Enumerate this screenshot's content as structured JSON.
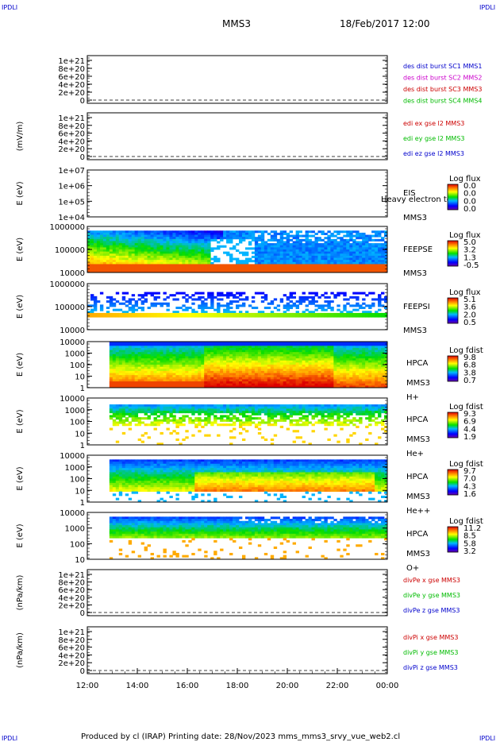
{
  "corner_logo": "IPDLI",
  "title": "MMS3",
  "date": "18/Feb/2017 12:00",
  "footer": "Produced by cl (IRAP)   Printing date: 28/Nov/2023   mms_mms3_srvy_vue_web2.cl",
  "time_ticks": [
    "12:00",
    "14:00",
    "16:00",
    "18:00",
    "20:00",
    "22:00",
    "00:00"
  ],
  "chart_data": [
    {
      "type": "line",
      "ylabel": "",
      "y_ticks": [
        "1e+21",
        "8e+20",
        "6e+20",
        "4e+20",
        "2e+20",
        "0"
      ],
      "legend": [
        {
          "text": "des dist burst SC1 MMS1",
          "color": "#0000cc"
        },
        {
          "text": "des dist burst SC2 MMS2",
          "color": "#cc00cc"
        },
        {
          "text": "des dist burst SC3 MMS3",
          "color": "#cc0000"
        },
        {
          "text": "des dist burst SC4 MMS4",
          "color": "#00bb00"
        }
      ],
      "zero_line": true
    },
    {
      "type": "line",
      "ylabel": "(mV/m)",
      "y_ticks": [
        "1e+21",
        "8e+20",
        "6e+20",
        "4e+20",
        "2e+20",
        "0"
      ],
      "legend": [
        {
          "text": "edi ex gse l2 MMS3",
          "color": "#cc0000"
        },
        {
          "text": "edi ey gse l2 MMS3",
          "color": "#00bb00"
        },
        {
          "text": "edi ez gse l2 MMS3",
          "color": "#0000cc"
        }
      ],
      "zero_line": true
    },
    {
      "type": "heatmap",
      "ylabel": "E (eV)",
      "y_ticks": [
        "1e+07",
        "1e+06",
        "1e+05",
        "1e+04"
      ],
      "instrument": [
        "EIS",
        "MMS3"
      ],
      "overlay_text": "Heavy electron to",
      "colorbar_title": "Log flux",
      "colorbar_ticks": [
        "0.0",
        "0.0",
        "0.0",
        "0.0"
      ],
      "fill": "none"
    },
    {
      "type": "heatmap",
      "ylabel": "E (eV)",
      "y_ticks": [
        "1000000",
        "100000",
        "10000"
      ],
      "instrument": [
        "FEEPSE",
        "MMS3"
      ],
      "colorbar_title": "Log flux",
      "colorbar_ticks": [
        "5.0",
        "3.2",
        "1.3",
        "-0.5"
      ],
      "fill": "feepse"
    },
    {
      "type": "heatmap",
      "ylabel": "E (eV)",
      "y_ticks": [
        "1000000",
        "100000",
        "10000"
      ],
      "instrument": [
        "FEEPSI",
        "MMS3"
      ],
      "colorbar_title": "Log flux",
      "colorbar_ticks": [
        "5.1",
        "3.6",
        "2.0",
        "0.5"
      ],
      "fill": "feepsi"
    },
    {
      "type": "heatmap",
      "ylabel": "E (eV)",
      "y_ticks": [
        "10000",
        "1000",
        "100",
        "10",
        "1"
      ],
      "instrument": [
        "HPCA",
        "MMS3",
        "H+"
      ],
      "colorbar_title": "Log fdist",
      "colorbar_ticks": [
        "9.8",
        "6.8",
        "3.8",
        "0.7"
      ],
      "fill": "hplus"
    },
    {
      "type": "heatmap",
      "ylabel": "E (eV)",
      "y_ticks": [
        "10000",
        "1000",
        "100",
        "10",
        "1"
      ],
      "instrument": [
        "HPCA",
        "MMS3",
        "He+"
      ],
      "colorbar_title": "Log fdist",
      "colorbar_ticks": [
        "9.3",
        "6.9",
        "4.4",
        "1.9"
      ],
      "fill": "heplus"
    },
    {
      "type": "heatmap",
      "ylabel": "E (eV)",
      "y_ticks": [
        "10000",
        "1000",
        "100",
        "10",
        "1"
      ],
      "instrument": [
        "HPCA",
        "MMS3",
        "He++"
      ],
      "colorbar_title": "Log fdist",
      "colorbar_ticks": [
        "9.7",
        "7.0",
        "4.3",
        "1.6"
      ],
      "fill": "heplusplus"
    },
    {
      "type": "heatmap",
      "ylabel": "E (eV)",
      "y_ticks": [
        "10000",
        "1000",
        "100",
        "10"
      ],
      "instrument": [
        "HPCA",
        "MMS3",
        "O+"
      ],
      "colorbar_title": "Log fdist",
      "colorbar_ticks": [
        "11.2",
        "8.5",
        "5.8",
        "3.2"
      ],
      "fill": "oplus"
    },
    {
      "type": "line",
      "ylabel": "(nPa/km)",
      "y_ticks": [
        "1e+21",
        "8e+20",
        "6e+20",
        "4e+20",
        "2e+20",
        "0"
      ],
      "legend": [
        {
          "text": "divPe x gse MMS3",
          "color": "#cc0000"
        },
        {
          "text": "divPe y gse MMS3",
          "color": "#00bb00"
        },
        {
          "text": "divPe z gse MMS3",
          "color": "#0000cc"
        }
      ],
      "zero_line": true
    },
    {
      "type": "line",
      "ylabel": "(nPa/km)",
      "y_ticks": [
        "1e+21",
        "8e+20",
        "6e+20",
        "4e+20",
        "2e+20",
        "0"
      ],
      "legend": [
        {
          "text": "divPi x gse MMS3",
          "color": "#cc0000"
        },
        {
          "text": "divPi y gse MMS3",
          "color": "#00bb00"
        },
        {
          "text": "divPi z gse MMS3",
          "color": "#0000cc"
        }
      ],
      "zero_line": true
    }
  ]
}
